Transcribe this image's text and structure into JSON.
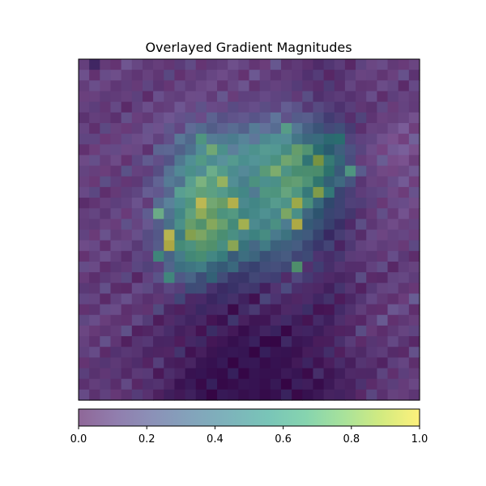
{
  "chart_data": {
    "type": "heatmap",
    "title": "Overlayed Gradient Magnitudes",
    "xlabel": "",
    "ylabel": "",
    "rows": 32,
    "cols": 32,
    "colormap": "viridis",
    "overlay_alpha": 0.6,
    "axes_ticks": false,
    "grid": false,
    "colorbar": {
      "orientation": "horizontal",
      "placement": "bottom",
      "range": [
        0.0,
        1.0
      ],
      "ticks": [
        0.0,
        0.2,
        0.4,
        0.6,
        0.8,
        1.0
      ],
      "tick_labels": [
        "0.0",
        "0.2",
        "0.4",
        "0.6",
        "0.8",
        "1.0"
      ]
    },
    "palette": {
      "viridis": [
        "#440154",
        "#482878",
        "#3e4989",
        "#31688e",
        "#26828e",
        "#1f9e89",
        "#35b779",
        "#6ece58",
        "#b5de2b",
        "#fde725"
      ],
      "background_dark": "#1e0a2c",
      "background_light": "#d8c4e0"
    },
    "gradient_blobs": [
      {
        "cx": 11.0,
        "cy": 12.5,
        "sx": 2.4,
        "sy": 3.6,
        "amp": 0.55
      },
      {
        "cx": 19.5,
        "cy": 10.5,
        "sx": 2.8,
        "sy": 3.4,
        "amp": 0.55
      },
      {
        "cx": 15.0,
        "cy": 16.0,
        "sx": 4.5,
        "sy": 3.0,
        "amp": 0.35
      },
      {
        "cx": 14.5,
        "cy": 8.0,
        "sx": 4.0,
        "sy": 2.0,
        "amp": 0.25
      },
      {
        "cx": 23.0,
        "cy": 9.0,
        "sx": 1.4,
        "sy": 2.5,
        "amp": 0.25
      },
      {
        "cx": 10.0,
        "cy": 18.0,
        "sx": 2.0,
        "sy": 2.0,
        "amp": 0.25
      }
    ],
    "peaks": [
      {
        "r": 13,
        "c": 11,
        "v": 0.95
      },
      {
        "r": 13,
        "c": 14,
        "v": 0.95
      },
      {
        "r": 15,
        "c": 15,
        "v": 0.9
      },
      {
        "r": 16,
        "c": 8,
        "v": 0.95
      },
      {
        "r": 17,
        "c": 8,
        "v": 0.95
      },
      {
        "r": 15,
        "c": 20,
        "v": 0.95
      },
      {
        "r": 13,
        "c": 20,
        "v": 0.9
      },
      {
        "r": 14,
        "c": 19,
        "v": 0.8
      },
      {
        "r": 11,
        "c": 13,
        "v": 0.85
      },
      {
        "r": 9,
        "c": 22,
        "v": 0.85
      },
      {
        "r": 12,
        "c": 22,
        "v": 0.85
      },
      {
        "r": 17,
        "c": 14,
        "v": 0.85
      },
      {
        "r": 16,
        "c": 10,
        "v": 0.85
      },
      {
        "r": 8,
        "c": 12,
        "v": 0.75
      },
      {
        "r": 7,
        "c": 11,
        "v": 0.65
      },
      {
        "r": 8,
        "c": 20,
        "v": 0.75
      },
      {
        "r": 10,
        "c": 17,
        "v": 0.7
      },
      {
        "r": 19,
        "c": 20,
        "v": 0.7
      },
      {
        "r": 15,
        "c": 13,
        "v": 0.75
      },
      {
        "r": 14,
        "c": 7,
        "v": 0.7
      },
      {
        "r": 10,
        "c": 25,
        "v": 0.65
      },
      {
        "r": 20,
        "c": 8,
        "v": 0.6
      },
      {
        "r": 18,
        "c": 7,
        "v": 0.6
      },
      {
        "r": 6,
        "c": 19,
        "v": 0.65
      },
      {
        "r": 7,
        "c": 24,
        "v": 0.55
      },
      {
        "r": 16,
        "c": 17,
        "v": 0.6
      },
      {
        "r": 12,
        "c": 17,
        "v": 0.65
      }
    ]
  }
}
